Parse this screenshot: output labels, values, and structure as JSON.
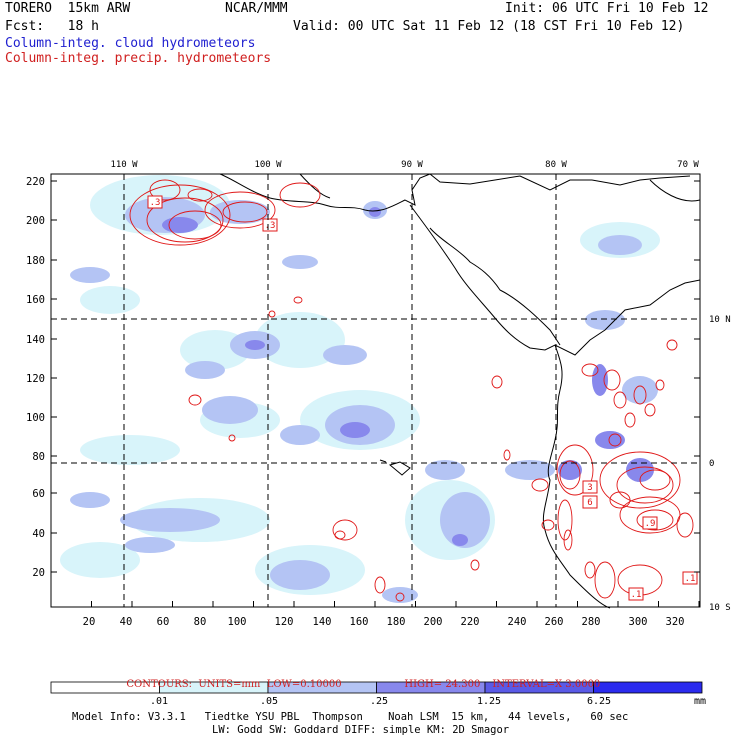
{
  "header": {
    "model": "TORERO  15km ARW",
    "org": "NCAR/MMM",
    "init": "Init: 06 UTC Fri 10 Feb 12",
    "fcst": "Fcst:   18 h",
    "valid": "Valid: 00 UTC Sat 11 Feb 12 (18 CST Fri 10 Feb 12)",
    "legend_cloud": "Column-integ. cloud hydrometeors",
    "legend_precip": "Column-integ. precip. hydrometeors"
  },
  "map": {
    "top_lon_labels": [
      "110 W",
      "100 W",
      "90 W",
      "80 W",
      "70 W"
    ],
    "right_lat_labels": [
      "10 N",
      "0",
      "10 S"
    ],
    "y_ticks": [
      "220",
      "200",
      "180",
      "160",
      "140",
      "120",
      "100",
      "80",
      "60",
      "40",
      "20"
    ],
    "x_ticks": [
      "20",
      "40",
      "60",
      "80",
      "100",
      "120",
      "140",
      "160",
      "180",
      "200",
      "220",
      "240",
      "260",
      "280",
      "300",
      "320"
    ],
    "boxed_labels": [
      ".3",
      ".3",
      "3",
      "6",
      ".9",
      ".1",
      ".1"
    ]
  },
  "contours_line": {
    "prefix": "CONTOURS:  UNITS=mm  LOW=",
    "low": "0.10000",
    "high_label": "HIGH=",
    "high": "24.300",
    "interval_label": "INTERVAL=X",
    "interval": "3.0000"
  },
  "colorbar": {
    "labels": [
      ".01",
      ".05",
      ".25",
      "1.25",
      "6.25"
    ],
    "unit": "mm",
    "colors": [
      "#ffffff",
      "#d8f4fa",
      "#b4c4f4",
      "#8888ec",
      "#5a5ae6",
      "#2b2bee"
    ]
  },
  "footer": {
    "line1": "Model Info: V3.3.1   Tiedtke YSU PBL  Thompson    Noah LSM  15 km,   44 levels,   60 sec",
    "line2": "LW: Godd SW: Goddard DIFF: simple KM: 2D Smagor"
  },
  "colors": {
    "cloud_light": "#d8f4fa",
    "cloud_mid": "#b4c4f4",
    "cloud_dark": "#8888ec",
    "precip": "#e01818"
  }
}
